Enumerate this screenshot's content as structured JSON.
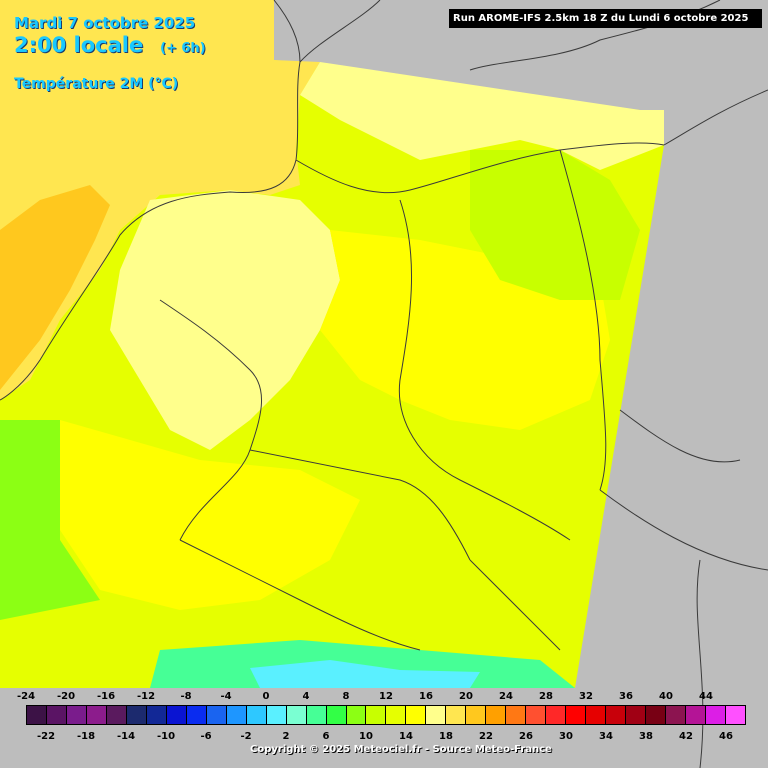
{
  "header": {
    "date": "Mardi 7 octobre 2025",
    "time": "2:00 locale",
    "lead": "(+ 6h)",
    "variable": "Température 2M (°C)"
  },
  "run_label": "Run AROME-IFS 2.5km 18 Z du Lundi 6 octobre 2025",
  "copyright": "Copyright © 2025 Meteociel.fr - Source Meteo-France",
  "legend": {
    "top_labels": [
      "-24",
      "-20",
      "-16",
      "-12",
      "-8",
      "-4",
      "0",
      "4",
      "8",
      "12",
      "16",
      "20",
      "24",
      "28",
      "32",
      "36",
      "40",
      "44"
    ],
    "bottom_labels": [
      "-22",
      "-18",
      "-14",
      "-10",
      "-6",
      "-2",
      "2",
      "6",
      "10",
      "14",
      "18",
      "22",
      "26",
      "30",
      "34",
      "38",
      "42",
      "46"
    ],
    "colors": [
      "#3c1246",
      "#5a1464",
      "#7a1c8c",
      "#8c1c8c",
      "#5a1a5e",
      "#1c2a6e",
      "#122896",
      "#0a14d2",
      "#0a2cf0",
      "#1a64f0",
      "#1e96ff",
      "#2ec8ff",
      "#5af0ff",
      "#7affd2",
      "#46ff96",
      "#32ff46",
      "#8cff14",
      "#c8ff00",
      "#e6ff00",
      "#ffff00",
      "#ffff8c",
      "#ffe650",
      "#ffc81e",
      "#ffa000",
      "#ff7814",
      "#ff5030",
      "#ff2828",
      "#ff0000",
      "#e60000",
      "#c8000a",
      "#a00014",
      "#780014",
      "#8c1450",
      "#b41496",
      "#dc1ee6",
      "#ff50ff"
    ]
  },
  "field_colors": {
    "sea": "#ffe650",
    "sea_warm": "#ffc81e",
    "land_light": "#ffff8c",
    "land_yellow": "#ffff00",
    "land_lime": "#e6ff00",
    "land_green": "#c8ff00",
    "alps": "#46ff96",
    "outside": "#bdbdbd",
    "border_line": "#3a3a3a"
  }
}
